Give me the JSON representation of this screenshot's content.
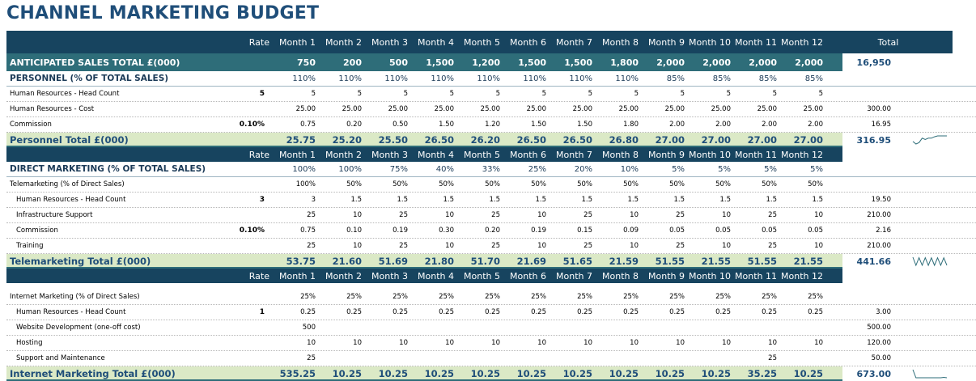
{
  "title": "CHANNEL MARKETING BUDGET",
  "header": {
    "rate": "Rate",
    "months": [
      "Month 1",
      "Month 2",
      "Month 3",
      "Month 4",
      "Month 5",
      "Month 6",
      "Month 7",
      "Month 8",
      "Month 9",
      "Month 10",
      "Month 11",
      "Month 12"
    ],
    "total": "Total"
  },
  "sales": {
    "label": "ANTICIPATED SALES TOTAL £(000)",
    "values": [
      "750",
      "200",
      "500",
      "1,500",
      "1,200",
      "1,500",
      "1,500",
      "1,800",
      "2,000",
      "2,000",
      "2,000",
      "2,000"
    ],
    "total": "16,950"
  },
  "personnel": {
    "section": {
      "label": "PERSONNEL (% OF TOTAL SALES)",
      "values": [
        "110%",
        "110%",
        "110%",
        "110%",
        "110%",
        "110%",
        "110%",
        "110%",
        "85%",
        "85%",
        "85%",
        "85%"
      ]
    },
    "rows": [
      {
        "label": "Human Resources - Head Count",
        "rate": "5",
        "values": [
          "5",
          "5",
          "5",
          "5",
          "5",
          "5",
          "5",
          "5",
          "5",
          "5",
          "5",
          "5"
        ],
        "total": ""
      },
      {
        "label": "Human Resources - Cost",
        "rate": "",
        "values": [
          "25.00",
          "25.00",
          "25.00",
          "25.00",
          "25.00",
          "25.00",
          "25.00",
          "25.00",
          "25.00",
          "25.00",
          "25.00",
          "25.00"
        ],
        "total": "300.00"
      },
      {
        "label": "Commission",
        "rate": "0.10%",
        "values": [
          "0.75",
          "0.20",
          "0.50",
          "1.50",
          "1.20",
          "1.50",
          "1.50",
          "1.80",
          "2.00",
          "2.00",
          "2.00",
          "2.00"
        ],
        "total": "16.95"
      }
    ],
    "total": {
      "label": "Personnel Total £(000)",
      "values": [
        "25.75",
        "25.20",
        "25.50",
        "26.50",
        "26.20",
        "26.50",
        "26.50",
        "26.80",
        "27.00",
        "27.00",
        "27.00",
        "27.00"
      ],
      "total": "316.95",
      "spark": [
        25.75,
        25.2,
        25.5,
        26.5,
        26.2,
        26.5,
        26.5,
        26.8,
        27,
        27,
        27,
        27
      ]
    }
  },
  "direct": {
    "section": {
      "label": "DIRECT MARKETING (% OF TOTAL SALES)",
      "values": [
        "100%",
        "100%",
        "75%",
        "40%",
        "33%",
        "25%",
        "20%",
        "10%",
        "5%",
        "5%",
        "5%",
        "5%"
      ]
    },
    "rows": [
      {
        "label": "Telemarketing (% of Direct Sales)",
        "rate": "",
        "indent": false,
        "values": [
          "100%",
          "50%",
          "50%",
          "50%",
          "50%",
          "50%",
          "50%",
          "50%",
          "50%",
          "50%",
          "50%",
          "50%"
        ],
        "total": ""
      },
      {
        "label": "Human Resources - Head Count",
        "rate": "3",
        "indent": true,
        "values": [
          "3",
          "1.5",
          "1.5",
          "1.5",
          "1.5",
          "1.5",
          "1.5",
          "1.5",
          "1.5",
          "1.5",
          "1.5",
          "1.5"
        ],
        "total": "19.50"
      },
      {
        "label": "Infrastructure Support",
        "rate": "",
        "indent": true,
        "values": [
          "25",
          "10",
          "25",
          "10",
          "25",
          "10",
          "25",
          "10",
          "25",
          "10",
          "25",
          "10"
        ],
        "total": "210.00"
      },
      {
        "label": "Commission",
        "rate": "0.10%",
        "indent": true,
        "values": [
          "0.75",
          "0.10",
          "0.19",
          "0.30",
          "0.20",
          "0.19",
          "0.15",
          "0.09",
          "0.05",
          "0.05",
          "0.05",
          "0.05"
        ],
        "total": "2.16"
      },
      {
        "label": "Training",
        "rate": "",
        "indent": true,
        "values": [
          "25",
          "10",
          "25",
          "10",
          "25",
          "10",
          "25",
          "10",
          "25",
          "10",
          "25",
          "10"
        ],
        "total": "210.00"
      }
    ],
    "total": {
      "label": "Telemarketing Total £(000)",
      "values": [
        "53.75",
        "21.60",
        "51.69",
        "21.80",
        "51.70",
        "21.69",
        "51.65",
        "21.59",
        "51.55",
        "21.55",
        "51.55",
        "21.55"
      ],
      "total": "441.66",
      "spark": [
        53.75,
        21.6,
        51.69,
        21.8,
        51.7,
        21.69,
        51.65,
        21.59,
        51.55,
        21.55,
        51.55,
        21.55
      ]
    }
  },
  "internet": {
    "rows": [
      {
        "label": "Internet Marketing (% of Direct Sales)",
        "rate": "",
        "indent": false,
        "values": [
          "25%",
          "25%",
          "25%",
          "25%",
          "25%",
          "25%",
          "25%",
          "25%",
          "25%",
          "25%",
          "25%",
          "25%"
        ],
        "total": ""
      },
      {
        "label": "Human Resources - Head Count",
        "rate": "1",
        "indent": true,
        "values": [
          "0.25",
          "0.25",
          "0.25",
          "0.25",
          "0.25",
          "0.25",
          "0.25",
          "0.25",
          "0.25",
          "0.25",
          "0.25",
          "0.25"
        ],
        "total": "3.00"
      },
      {
        "label": "Website Development (one-off cost)",
        "rate": "",
        "indent": true,
        "values": [
          "500",
          "",
          "",
          "",
          "",
          "",
          "",
          "",
          "",
          "",
          "",
          ""
        ],
        "total": "500.00"
      },
      {
        "label": "Hosting",
        "rate": "",
        "indent": true,
        "values": [
          "10",
          "10",
          "10",
          "10",
          "10",
          "10",
          "10",
          "10",
          "10",
          "10",
          "10",
          "10"
        ],
        "total": "120.00"
      },
      {
        "label": "Support and Maintenance",
        "rate": "",
        "indent": true,
        "values": [
          "25",
          "",
          "",
          "",
          "",
          "",
          "",
          "",
          "",
          "",
          "25",
          ""
        ],
        "total": "50.00"
      }
    ],
    "total": {
      "label": "Internet Marketing Total £(000)",
      "values": [
        "535.25",
        "10.25",
        "10.25",
        "10.25",
        "10.25",
        "10.25",
        "10.25",
        "10.25",
        "10.25",
        "10.25",
        "35.25",
        "10.25"
      ],
      "total": "673.00",
      "spark": [
        535.25,
        10.25,
        10.25,
        10.25,
        10.25,
        10.25,
        10.25,
        10.25,
        10.25,
        10.25,
        35.25,
        10.25
      ]
    }
  },
  "colors": {
    "header": "#17445f",
    "sales": "#2e6d79",
    "total_fill": "#dbe9c6",
    "accent": "#1f4e79"
  }
}
